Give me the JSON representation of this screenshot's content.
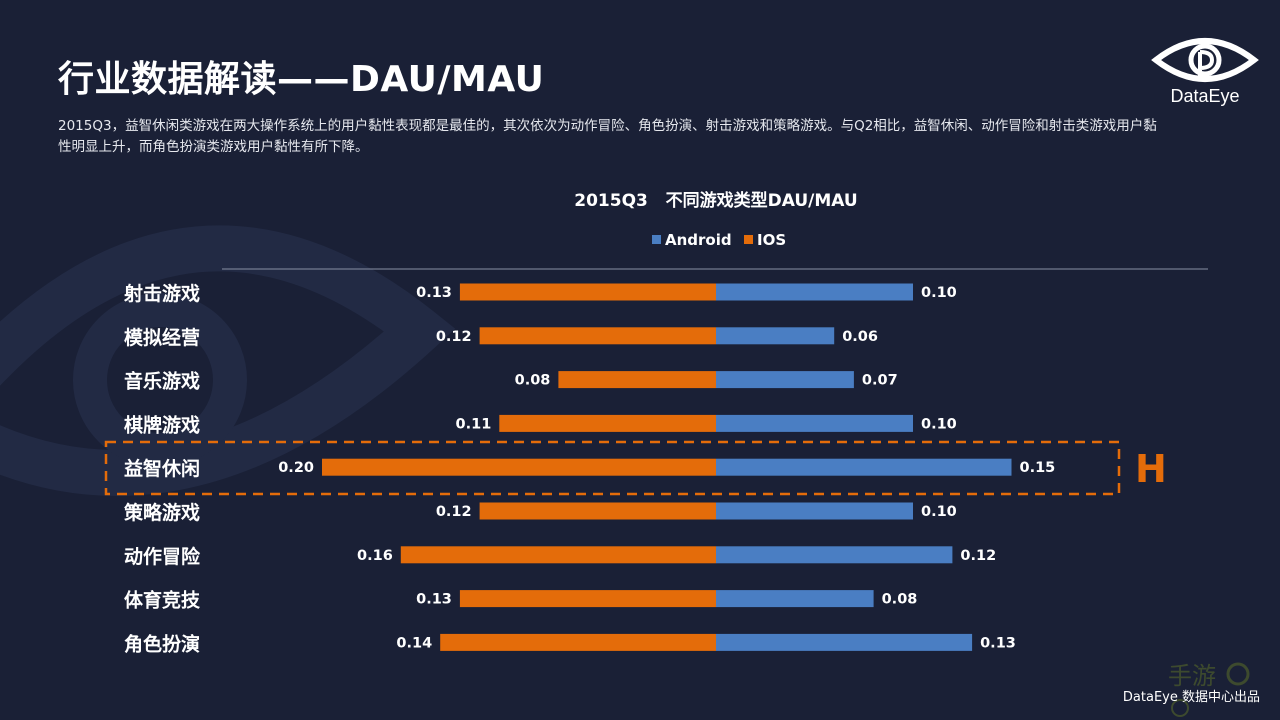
{
  "slide": {
    "title": "行业数据解读——DAU/MAU",
    "description": "2015Q3，益智休闲类游戏在两大操作系统上的用户黏性表现都是最佳的，其次依次为动作冒险、角色扮演、射击游戏和策略游戏。与Q2相比，益智休闲、动作冒险和射击类游戏用户黏性明显上升，而角色扮演类游戏用户黏性有所下降。",
    "logo_text": "DataEye",
    "footer": "DataEye 数据中心出品",
    "highlight_marker": "H"
  },
  "colors": {
    "background": "#1a2036",
    "android": "#4a7ec3",
    "ios": "#e46c0a",
    "highlight": "#e46c0a",
    "text": "#ffffff"
  },
  "chart_data": {
    "type": "bar",
    "orientation": "horizontal-diverging",
    "title": "2015Q3   不同游戏类型DAU/MAU",
    "legend_position": "top-center",
    "categories": [
      "射击游戏",
      "模拟经营",
      "音乐游戏",
      "棋牌游戏",
      "益智休闲",
      "策略游戏",
      "动作冒险",
      "体育竞技",
      "角色扮演"
    ],
    "series": [
      {
        "name": "Android",
        "side": "right",
        "color": "#4a7ec3",
        "values": [
          0.1,
          0.06,
          0.07,
          0.1,
          0.15,
          0.1,
          0.12,
          0.08,
          0.13
        ]
      },
      {
        "name": "IOS",
        "side": "left",
        "color": "#e46c0a",
        "values": [
          0.13,
          0.12,
          0.08,
          0.11,
          0.2,
          0.12,
          0.16,
          0.13,
          0.14
        ]
      }
    ],
    "value_labels": {
      "Android": [
        "0.10",
        "0.06",
        "0.07",
        "0.10",
        "0.15",
        "0.10",
        "0.12",
        "0.08",
        "0.13"
      ],
      "IOS": [
        "0.13",
        "0.12",
        "0.08",
        "0.11",
        "0.20",
        "0.12",
        "0.16",
        "0.13",
        "0.14"
      ]
    },
    "highlighted_category": "益智休闲",
    "grid": false
  }
}
